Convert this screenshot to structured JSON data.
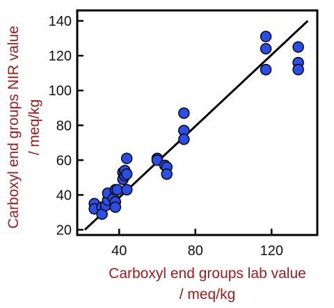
{
  "chart_data": {
    "type": "scatter",
    "xlabel": [
      "Carboxyl end groups lab value",
      "/ meq/kg"
    ],
    "ylabel": [
      "Carboxyl end groups NIR value",
      "/ meq/kg"
    ],
    "xlim": [
      18,
      144
    ],
    "ylim": [
      17,
      146
    ],
    "xticks": [
      40,
      80,
      120
    ],
    "yticks": [
      20,
      40,
      60,
      80,
      100,
      120,
      140
    ],
    "grid": false,
    "legend": "none",
    "points": [
      {
        "x": 27,
        "y": 35
      },
      {
        "x": 27,
        "y": 32
      },
      {
        "x": 31,
        "y": 33
      },
      {
        "x": 31,
        "y": 29
      },
      {
        "x": 33,
        "y": 34
      },
      {
        "x": 34,
        "y": 37
      },
      {
        "x": 34,
        "y": 41
      },
      {
        "x": 37,
        "y": 38
      },
      {
        "x": 38,
        "y": 36
      },
      {
        "x": 38,
        "y": 33
      },
      {
        "x": 38,
        "y": 43
      },
      {
        "x": 39,
        "y": 43
      },
      {
        "x": 42,
        "y": 49
      },
      {
        "x": 42,
        "y": 53
      },
      {
        "x": 43,
        "y": 51
      },
      {
        "x": 43,
        "y": 54
      },
      {
        "x": 44,
        "y": 52
      },
      {
        "x": 44,
        "y": 61
      },
      {
        "x": 44,
        "y": 43
      },
      {
        "x": 60,
        "y": 61
      },
      {
        "x": 60,
        "y": 60
      },
      {
        "x": 64,
        "y": 57
      },
      {
        "x": 65,
        "y": 56
      },
      {
        "x": 65,
        "y": 52
      },
      {
        "x": 74,
        "y": 87
      },
      {
        "x": 74,
        "y": 77
      },
      {
        "x": 74,
        "y": 72
      },
      {
        "x": 117,
        "y": 131
      },
      {
        "x": 117,
        "y": 124
      },
      {
        "x": 117,
        "y": 112
      },
      {
        "x": 134,
        "y": 125
      },
      {
        "x": 134,
        "y": 116
      },
      {
        "x": 134,
        "y": 112
      }
    ],
    "fit_line": {
      "x": [
        22,
        139
      ],
      "y": [
        20,
        140
      ]
    },
    "colors": {
      "marker_fill": "#2a4fe8",
      "marker_edge": "#000000",
      "fit_line": "#000000",
      "axis": "#000000",
      "axis_title": "#a01a1a",
      "tick_label": "#111111"
    }
  }
}
